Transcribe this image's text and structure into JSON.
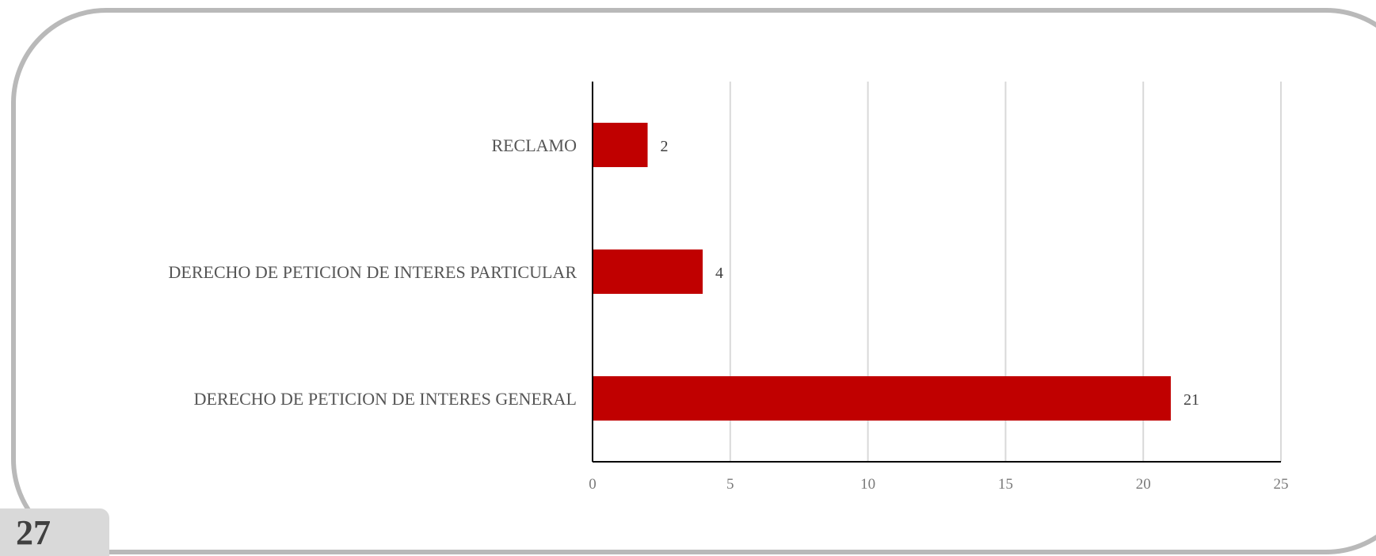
{
  "page_number": "27",
  "colors": {
    "bar": "#c00000",
    "gridline": "#d9d9d9",
    "axis": "#000000",
    "frame": "#b9b9b9"
  },
  "chart_data": {
    "type": "bar",
    "orientation": "horizontal",
    "categories": [
      "RECLAMO",
      "DERECHO DE PETICION DE INTERES PARTICULAR",
      "DERECHO DE PETICION DE INTERES GENERAL"
    ],
    "values": [
      2,
      4,
      21
    ],
    "data_labels": [
      "2",
      "4",
      "21"
    ],
    "xlim": [
      0,
      25
    ],
    "x_ticks": [
      0,
      5,
      10,
      15,
      20,
      25
    ],
    "x_tick_labels": [
      "0",
      "5",
      "10",
      "15",
      "20",
      "25"
    ],
    "title": "",
    "xlabel": "",
    "ylabel": "",
    "grid": "vertical",
    "legend": "none"
  }
}
